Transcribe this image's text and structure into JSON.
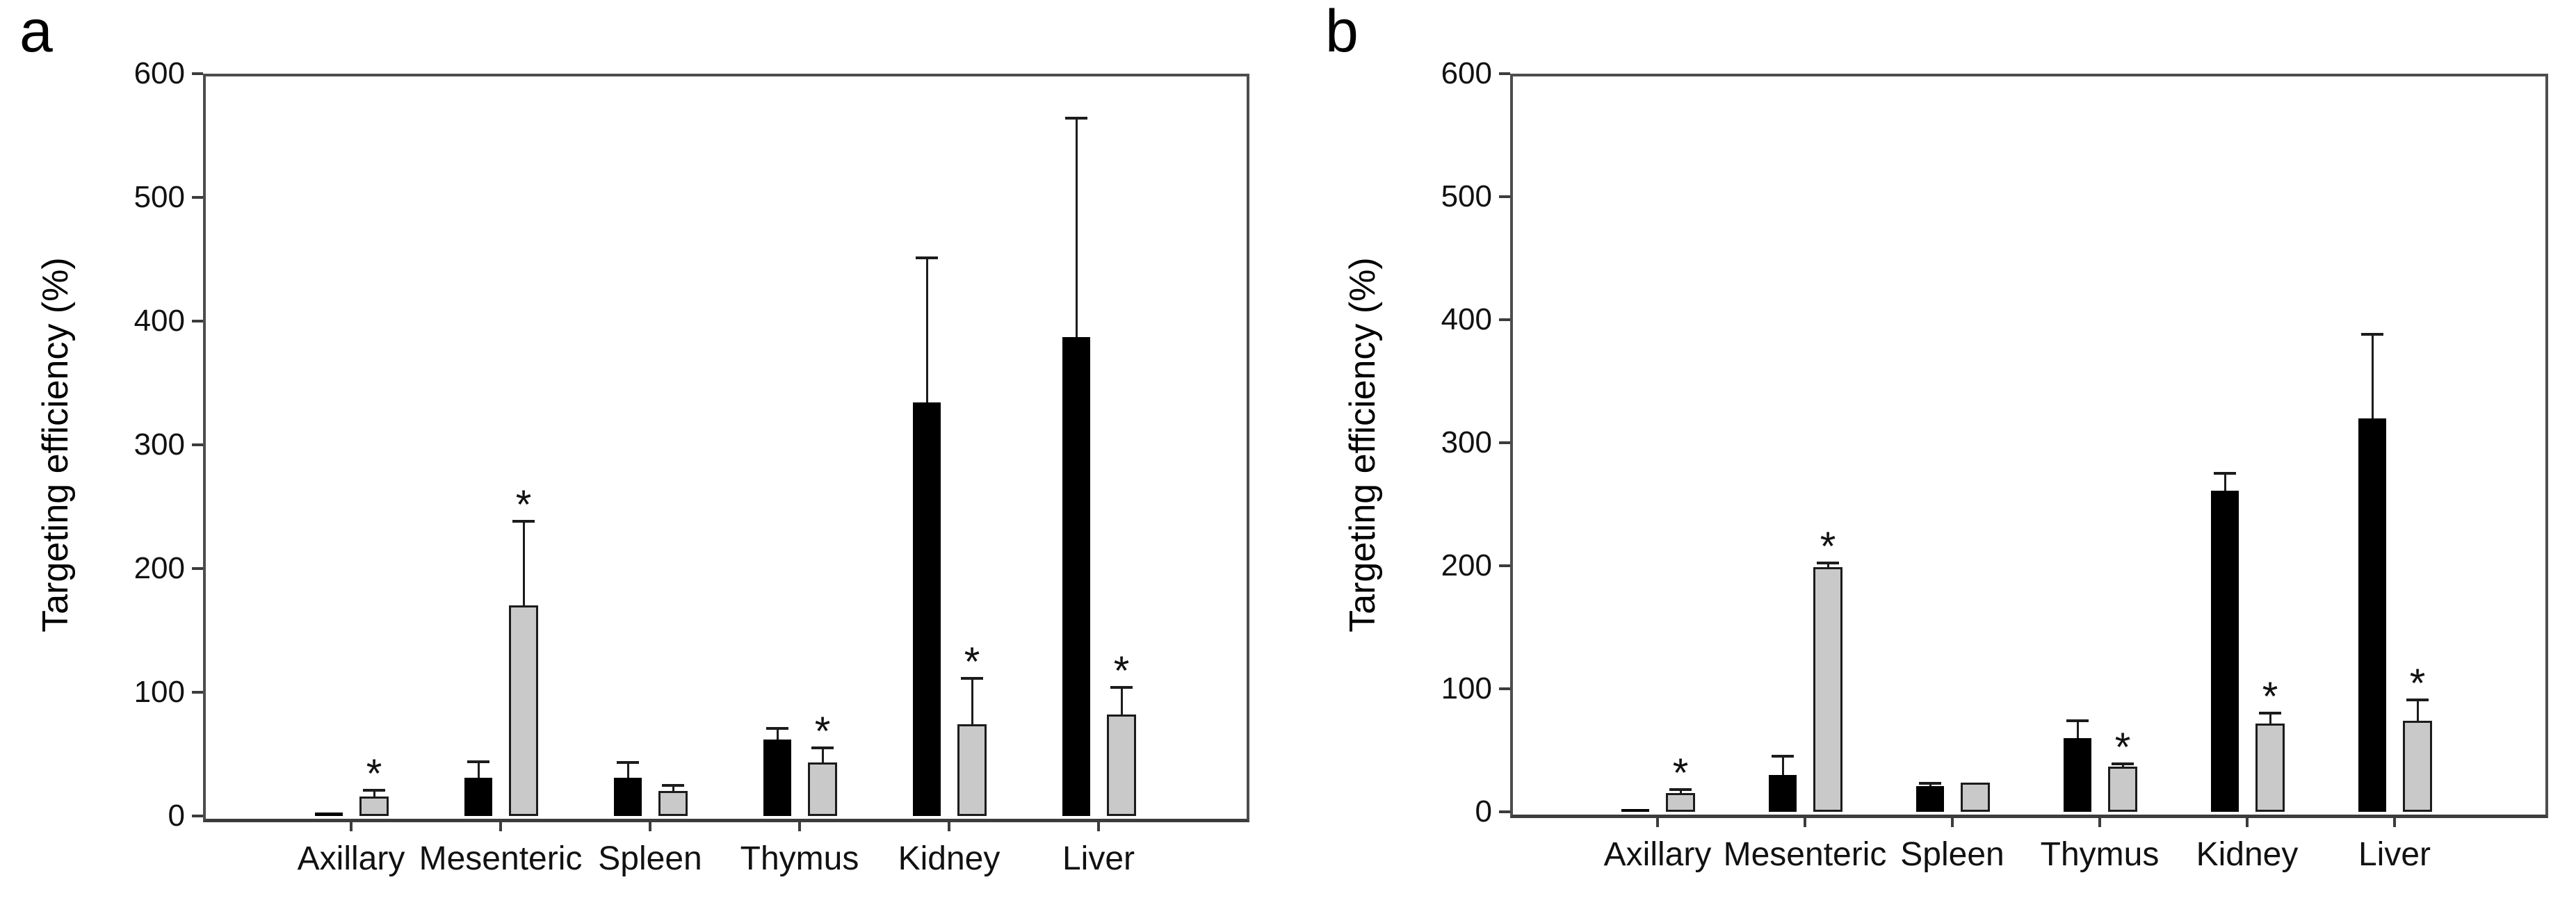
{
  "figure": {
    "background": "#ffffff",
    "panels": [
      {
        "letter": "a"
      },
      {
        "letter": "b"
      }
    ]
  },
  "colors": {
    "series_black": "#000000",
    "series_gray": "#c9c9c9",
    "bar_border": "#1c1c1c",
    "axis_frame": "#4d4d4d",
    "text": "#111111"
  },
  "sig_marker": "*",
  "chart_data": [
    {
      "type": "bar",
      "panel_label": "a",
      "title": "",
      "xlabel": "",
      "ylabel": "Targeting efficiency (%)",
      "ylim": [
        0,
        600
      ],
      "yticks": [
        0,
        100,
        200,
        300,
        400,
        500,
        600
      ],
      "grid": false,
      "legend": "none",
      "categories": [
        "Axillary",
        "Mesenteric",
        "Spleen",
        "Thymus",
        "Kidney",
        "Liver"
      ],
      "series": [
        {
          "name": "black",
          "color": "#000000",
          "values": [
            3,
            31,
            31,
            62,
            334,
            387
          ],
          "errors": [
            0,
            13,
            12,
            9,
            117,
            177
          ],
          "significant": [
            false,
            false,
            false,
            false,
            false,
            false
          ]
        },
        {
          "name": "gray",
          "color": "#c9c9c9",
          "values": [
            16,
            170,
            20,
            43,
            74,
            82
          ],
          "errors": [
            5,
            68,
            5,
            12,
            37,
            22
          ],
          "significant": [
            true,
            true,
            false,
            true,
            true,
            true
          ]
        }
      ]
    },
    {
      "type": "bar",
      "panel_label": "b",
      "title": "",
      "xlabel": "",
      "ylabel": "Targeting efficiency (%)",
      "ylim": [
        0,
        600
      ],
      "yticks": [
        0,
        100,
        200,
        300,
        400,
        500,
        600
      ],
      "grid": false,
      "legend": "none",
      "categories": [
        "Axillary",
        "Mesenteric",
        "Spleen",
        "Thymus",
        "Kidney",
        "Liver"
      ],
      "series": [
        {
          "name": "black",
          "color": "#000000",
          "values": [
            2,
            30,
            21,
            60,
            261,
            320
          ],
          "errors": [
            0,
            15,
            2,
            14,
            14,
            68
          ],
          "significant": [
            false,
            false,
            false,
            false,
            false,
            false
          ]
        },
        {
          "name": "gray",
          "color": "#c9c9c9",
          "values": [
            15,
            199,
            24,
            37,
            72,
            74
          ],
          "errors": [
            3,
            3,
            0,
            2,
            8,
            17
          ],
          "significant": [
            true,
            true,
            false,
            true,
            true,
            true
          ]
        }
      ]
    }
  ]
}
